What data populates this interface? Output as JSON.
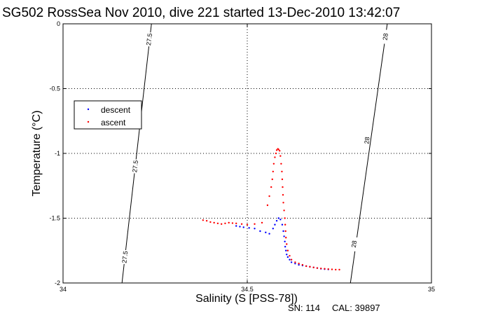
{
  "chart_data": {
    "type": "scatter",
    "title": "SG502 RossSea Nov 2010, dive 221 started 13-Dec-2010 13:42:07",
    "xlabel": "Salinity (S [PSS-78])",
    "ylabel": "Temperature (°C)",
    "xlim": [
      34,
      35
    ],
    "ylim": [
      -2,
      0
    ],
    "x_ticks": [
      "34",
      "34.5",
      "35"
    ],
    "y_ticks": [
      "0",
      "-0.5",
      "-1",
      "-1.5",
      "-2"
    ],
    "grid": true,
    "legend_position": "upper-left",
    "series": [
      {
        "name": "descent",
        "color": "#0000ff",
        "points": [
          [
            34.47,
            -1.56
          ],
          [
            34.48,
            -1.565
          ],
          [
            34.49,
            -1.57
          ],
          [
            34.505,
            -1.575
          ],
          [
            34.52,
            -1.58
          ],
          [
            34.535,
            -1.6
          ],
          [
            34.55,
            -1.61
          ],
          [
            34.56,
            -1.62
          ],
          [
            34.57,
            -1.58
          ],
          [
            34.575,
            -1.55
          ],
          [
            34.58,
            -1.52
          ],
          [
            34.585,
            -1.5
          ],
          [
            34.59,
            -1.51
          ],
          [
            34.595,
            -1.55
          ],
          [
            34.598,
            -1.6
          ],
          [
            34.6,
            -1.64
          ],
          [
            34.602,
            -1.68
          ],
          [
            34.603,
            -1.72
          ],
          [
            34.605,
            -1.75
          ],
          [
            34.607,
            -1.78
          ],
          [
            34.61,
            -1.8
          ],
          [
            34.615,
            -1.82
          ],
          [
            34.62,
            -1.84
          ],
          [
            34.63,
            -1.85
          ],
          [
            34.64,
            -1.86
          ],
          [
            34.65,
            -1.865
          ],
          [
            34.66,
            -1.87
          ],
          [
            34.67,
            -1.875
          ],
          [
            34.68,
            -1.88
          ],
          [
            34.69,
            -1.885
          ],
          [
            34.7,
            -1.89
          ],
          [
            34.71,
            -1.893
          ],
          [
            34.72,
            -1.895
          ]
        ]
      },
      {
        "name": "ascent",
        "color": "#ff0000",
        "points": [
          [
            34.38,
            -1.515
          ],
          [
            34.39,
            -1.52
          ],
          [
            34.4,
            -1.53
          ],
          [
            34.41,
            -1.535
          ],
          [
            34.42,
            -1.54
          ],
          [
            34.43,
            -1.545
          ],
          [
            34.44,
            -1.54
          ],
          [
            34.45,
            -1.535
          ],
          [
            34.46,
            -1.538
          ],
          [
            34.47,
            -1.54
          ],
          [
            34.485,
            -1.545
          ],
          [
            34.5,
            -1.55
          ],
          [
            34.52,
            -1.545
          ],
          [
            34.54,
            -1.535
          ],
          [
            34.555,
            -1.4
          ],
          [
            34.56,
            -1.33
          ],
          [
            34.565,
            -1.26
          ],
          [
            34.568,
            -1.2
          ],
          [
            34.57,
            -1.14
          ],
          [
            34.572,
            -1.08
          ],
          [
            34.575,
            -1.03
          ],
          [
            34.578,
            -1.0
          ],
          [
            34.58,
            -0.975
          ],
          [
            34.583,
            -0.965
          ],
          [
            34.585,
            -0.97
          ],
          [
            34.588,
            -0.98
          ],
          [
            34.59,
            -1.02
          ],
          [
            34.592,
            -1.08
          ],
          [
            34.594,
            -1.14
          ],
          [
            34.595,
            -1.2
          ],
          [
            34.596,
            -1.26
          ],
          [
            34.597,
            -1.32
          ],
          [
            34.598,
            -1.38
          ],
          [
            34.6,
            -1.44
          ],
          [
            34.602,
            -1.5
          ],
          [
            34.603,
            -1.55
          ],
          [
            34.604,
            -1.6
          ],
          [
            34.605,
            -1.65
          ],
          [
            34.607,
            -1.7
          ],
          [
            34.61,
            -1.75
          ],
          [
            34.615,
            -1.79
          ],
          [
            34.62,
            -1.82
          ],
          [
            34.63,
            -1.84
          ],
          [
            34.64,
            -1.85
          ],
          [
            34.65,
            -1.86
          ],
          [
            34.66,
            -1.87
          ],
          [
            34.67,
            -1.875
          ],
          [
            34.68,
            -1.88
          ],
          [
            34.69,
            -1.885
          ],
          [
            34.7,
            -1.888
          ],
          [
            34.71,
            -1.89
          ],
          [
            34.72,
            -1.893
          ],
          [
            34.73,
            -1.895
          ],
          [
            34.74,
            -1.897
          ],
          [
            34.75,
            -1.897
          ]
        ]
      }
    ],
    "density_contours": [
      {
        "label": "27.5",
        "points": [
          [
            34.16,
            -2
          ],
          [
            34.24,
            0
          ]
        ],
        "label_positions": [
          [
            34.168,
            -1.8
          ],
          [
            34.196,
            -1.1
          ],
          [
            34.234,
            -0.12
          ]
        ]
      },
      {
        "label": "28",
        "points": [
          [
            34.78,
            -2
          ],
          [
            34.88,
            0
          ]
        ],
        "label_positions": [
          [
            34.79,
            -1.7
          ],
          [
            34.825,
            -0.9
          ],
          [
            34.875,
            -0.1
          ]
        ]
      }
    ]
  },
  "footer": {
    "serial": "SN: 114",
    "calibration": "CAL: 39897"
  }
}
